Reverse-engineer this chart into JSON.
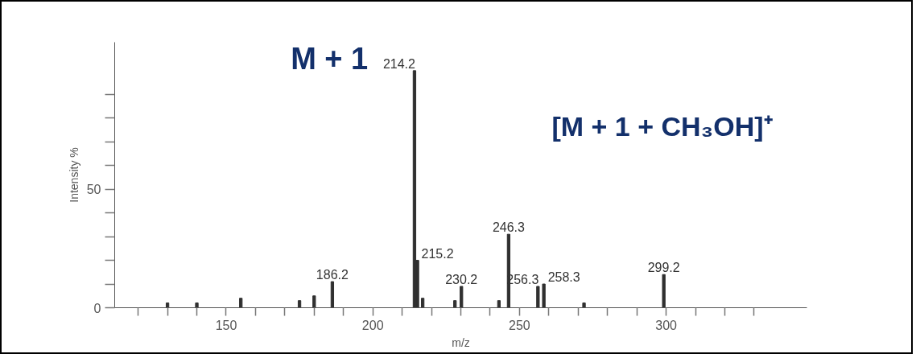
{
  "chart_data": {
    "type": "bar",
    "xlabel": "m/z",
    "ylabel": "Intensity %",
    "x": [
      130,
      140,
      155,
      175,
      180,
      186.2,
      214.2,
      215.2,
      217,
      228,
      230.2,
      243,
      246.3,
      256.3,
      258.3,
      272,
      299.2
    ],
    "values": [
      2,
      2,
      4,
      3,
      5,
      11,
      100,
      20,
      4,
      3,
      9,
      3,
      31,
      9,
      10,
      2,
      14
    ],
    "color": "#303030",
    "xlim": [
      112,
      348
    ],
    "xticks": [
      {
        "value": 120,
        "label": null
      },
      {
        "value": 130,
        "label": null
      },
      {
        "value": 140,
        "label": null
      },
      150,
      {
        "value": 160,
        "label": null
      },
      {
        "value": 170,
        "label": null
      },
      {
        "value": 180,
        "label": null
      },
      {
        "value": 190,
        "label": null
      },
      200,
      {
        "value": 210,
        "label": null
      },
      {
        "value": 220,
        "label": null
      },
      {
        "value": 230,
        "label": null
      },
      {
        "value": 240,
        "label": null
      },
      250,
      {
        "value": 260,
        "label": null
      },
      {
        "value": 270,
        "label": null
      },
      {
        "value": 280,
        "label": null
      },
      {
        "value": 290,
        "label": null
      },
      300,
      {
        "value": 310,
        "label": null
      },
      {
        "value": 320,
        "label": null
      },
      {
        "value": 330,
        "label": null
      }
    ],
    "ylim": [
      0,
      112
    ],
    "yticks": [
      0,
      {
        "value": 10,
        "label": null
      },
      {
        "value": 20,
        "label": null
      },
      {
        "value": 30,
        "label": null
      },
      {
        "value": 40,
        "label": null
      },
      50,
      {
        "value": 60,
        "label": null
      },
      {
        "value": 70,
        "label": null
      },
      {
        "value": 80,
        "label": null
      },
      {
        "value": 90,
        "label": null
      }
    ],
    "annotations": [
      "M + 1",
      "[M + 1 + CH₃OH]⁺",
      {
        "text": "186.2",
        "x": 186.2,
        "y": 11
      },
      {
        "text": "214.2",
        "x": 214.2,
        "y": 100
      },
      {
        "text": "215.2",
        "x": 215.2,
        "y": 20
      },
      {
        "text": "230.2",
        "x": 230.2,
        "y": 9
      },
      {
        "text": "246.3",
        "x": 246.3,
        "y": 31
      },
      {
        "text": "256.3",
        "x": 256.3,
        "y": 9
      },
      {
        "text": "258.3",
        "x": 258.3,
        "y": 10
      },
      {
        "text": "299.2",
        "x": 299.2,
        "y": 14
      }
    ]
  }
}
